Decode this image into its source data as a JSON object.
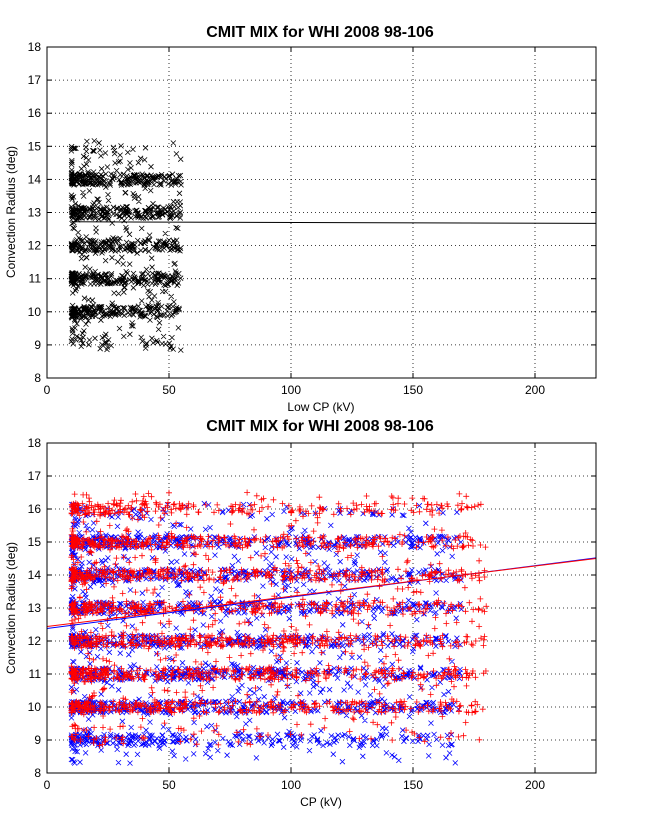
{
  "chart_data": [
    {
      "type": "scatter",
      "title": "CMIT MIX for WHI 2008 98-106",
      "xlabel": "Low CP (kV)",
      "ylabel": "Convection Radius (deg)",
      "xlim": [
        0,
        225
      ],
      "ylim": [
        8,
        18
      ],
      "xticks": [
        "0",
        "50",
        "100",
        "150",
        "200"
      ],
      "yticks": [
        "8",
        "9",
        "10",
        "11",
        "12",
        "13",
        "14",
        "15",
        "16",
        "17",
        "18"
      ],
      "grid": true,
      "series": [
        {
          "marker": "x",
          "color": "#000000",
          "x_range": [
            10,
            55
          ],
          "y_range": [
            9.0,
            15.0
          ],
          "count": 1200,
          "points": [
            [
              24,
              9.05
            ],
            [
              43,
              9.2
            ],
            [
              28,
              9.9
            ],
            [
              20,
              10.1
            ],
            [
              52,
              10.3
            ],
            [
              12,
              10.7
            ],
            [
              48,
              9.9
            ]
          ]
        },
        {
          "kind": "fit-line",
          "color": "#000000",
          "x": [
            10,
            225
          ],
          "y": [
            12.72,
            12.67
          ]
        }
      ]
    },
    {
      "type": "scatter",
      "title": "CMIT MIX for WHI 2008 98-106",
      "xlabel": "CP (kV)",
      "ylabel": "Convection Radius (deg)",
      "xlim": [
        0,
        225
      ],
      "ylim": [
        8,
        18
      ],
      "xticks": [
        "0",
        "50",
        "100",
        "150",
        "200"
      ],
      "yticks": [
        "8",
        "9",
        "10",
        "11",
        "12",
        "13",
        "14",
        "15",
        "16",
        "17",
        "18"
      ],
      "grid": true,
      "series": [
        {
          "marker": "x",
          "color": "#0000ff",
          "x_range": [
            10,
            170
          ],
          "y_range": [
            8.3,
            16.0
          ],
          "count": 2600,
          "points": [
            [
              34,
              8.3
            ],
            [
              45,
              9.05
            ],
            [
              80,
              9.0
            ],
            [
              30,
              9.1
            ],
            [
              104,
              10.1
            ],
            [
              168,
              15.9
            ],
            [
              120,
              11.5
            ],
            [
              125,
              11.5
            ]
          ]
        },
        {
          "marker": "+",
          "color": "#ff0000",
          "x_range": [
            10,
            180
          ],
          "y_range": [
            9.0,
            16.5
          ],
          "count": 2600,
          "points": [
            [
              82,
              16.5
            ],
            [
              86,
              16.4
            ],
            [
              180,
              13.05
            ],
            [
              24,
              9.0
            ],
            [
              100,
              15.9
            ]
          ]
        },
        {
          "kind": "fit-line",
          "color": "#0000ff",
          "x": [
            0,
            225
          ],
          "y": [
            12.38,
            14.52
          ]
        },
        {
          "kind": "fit-line",
          "color": "#ff0000",
          "x": [
            0,
            225
          ],
          "y": [
            12.44,
            14.5
          ]
        }
      ]
    }
  ]
}
